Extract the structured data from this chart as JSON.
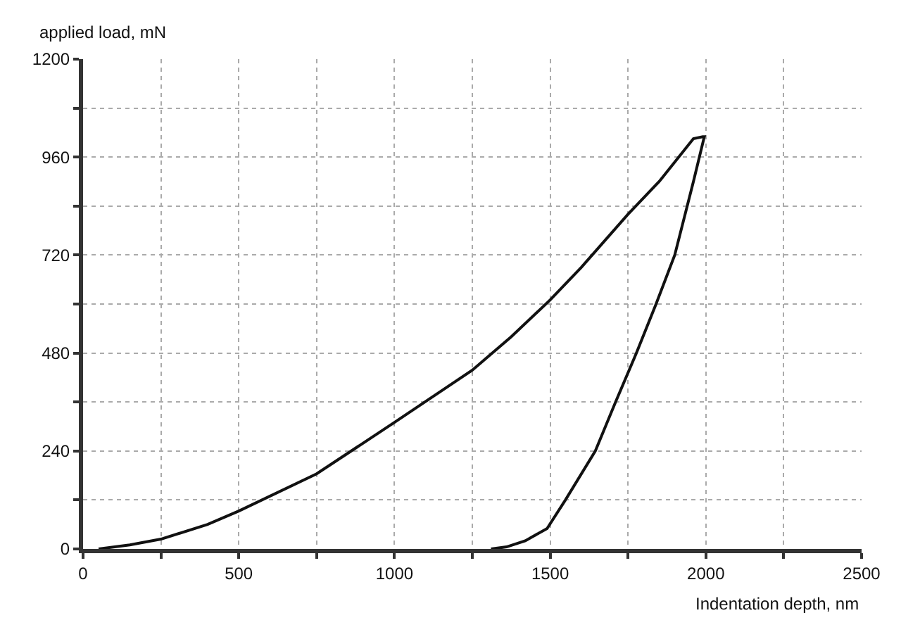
{
  "chart_data": {
    "type": "line",
    "xlabel": "Indentation depth, nm",
    "ylabel": "applied load, mN",
    "series": [
      {
        "color": "#111111",
        "x": [
          50,
          150,
          250,
          400,
          500,
          750,
          1000,
          1250,
          1375,
          1500,
          1600,
          1750,
          1850,
          1960,
          1990,
          1995,
          1960,
          1900,
          1840,
          1777,
          1710,
          1645,
          1549,
          1490,
          1420,
          1360,
          1310
        ],
        "values": [
          0,
          10,
          24,
          60,
          93,
          184,
          310,
          438,
          520,
          610,
          690,
          820,
          900,
          1005,
          1010,
          1010,
          900,
          720,
          600,
          480,
          360,
          240,
          120,
          50,
          20,
          5,
          0
        ]
      }
    ],
    "xlim": [
      0,
      2500
    ],
    "ylim": [
      0,
      1200
    ],
    "xticks": [
      0,
      {
        "value": 250,
        "label": null
      },
      500,
      {
        "value": 750,
        "label": null
      },
      1000,
      {
        "value": 1250,
        "label": null
      },
      1500,
      {
        "value": 1750,
        "label": null
      },
      2000,
      {
        "value": 2250,
        "label": null
      },
      2500
    ],
    "yticks": [
      0,
      {
        "value": 120,
        "label": null
      },
      240,
      {
        "value": 360,
        "label": null
      },
      480,
      {
        "value": 600,
        "label": null
      },
      720,
      {
        "value": 840,
        "label": null
      },
      960,
      {
        "value": 1080,
        "label": null
      },
      1200
    ],
    "grid": true,
    "marker": "none",
    "line_style": "solid"
  }
}
